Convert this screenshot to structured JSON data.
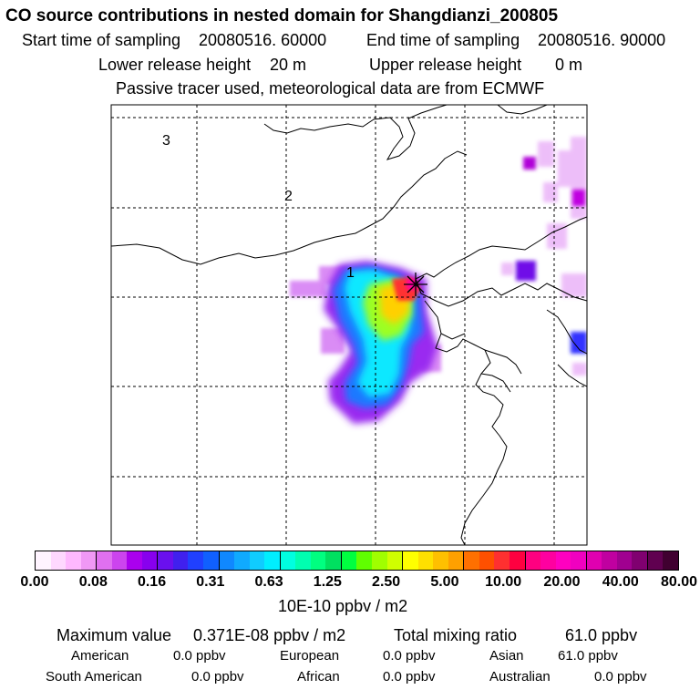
{
  "header": {
    "title": "CO  source contributions in nested domain for Shangdianzi_200805",
    "start_label": "Start time of sampling",
    "start_value": "20080516. 60000",
    "end_label": "End time of sampling",
    "end_value": "20080516. 90000",
    "lower_label": "Lower release height",
    "lower_value": "20 m",
    "upper_label": "Upper release height",
    "upper_value": "0 m",
    "note": "Passive tracer used, meteorological data are from ECMWF"
  },
  "map": {
    "labels": [
      "3",
      "2",
      "1"
    ]
  },
  "colorbar": {
    "ticks": [
      "0.00",
      "0.08",
      "0.16",
      "0.31",
      "0.63",
      "1.25",
      "2.50",
      "5.00",
      "10.00",
      "20.00",
      "40.00",
      "80.00"
    ],
    "unit": "10E-10 ppbv / m2",
    "colors": [
      "#fff4ff",
      "#ffd8ff",
      "#ffb8ff",
      "#f098f5",
      "#e070f0",
      "#cc44ee",
      "#aa00ee",
      "#8800ee",
      "#6a10ee",
      "#4020ee",
      "#2040ff",
      "#1060ff",
      "#1088ff",
      "#10aaff",
      "#10ccff",
      "#00eeff",
      "#00ffe0",
      "#00ffb0",
      "#00ff80",
      "#00e060",
      "#00ff40",
      "#60ff00",
      "#a0ff00",
      "#d0ff00",
      "#ffff00",
      "#ffe000",
      "#ffc000",
      "#ffa000",
      "#ff7000",
      "#ff5000",
      "#ff3030",
      "#ff0040",
      "#ff0080",
      "#ff00a0",
      "#ff00c0",
      "#f000c0",
      "#e000b0",
      "#c000a0",
      "#a00090",
      "#800070",
      "#600050",
      "#400030"
    ]
  },
  "footer": {
    "max_label": "Maximum value",
    "max_value": "0.371E-08 ppbv / m2",
    "total_label": "Total mixing ratio",
    "total_value": "61.0 ppbv",
    "regions": [
      {
        "name": "American",
        "value": "0.0 ppbv"
      },
      {
        "name": "European",
        "value": "0.0 ppbv"
      },
      {
        "name": "Asian",
        "value": "61.0 ppbv"
      },
      {
        "name": "South American",
        "value": "0.0 ppbv"
      },
      {
        "name": "African",
        "value": "0.0 ppbv"
      },
      {
        "name": "Australian",
        "value": "0.0 ppbv"
      }
    ]
  }
}
